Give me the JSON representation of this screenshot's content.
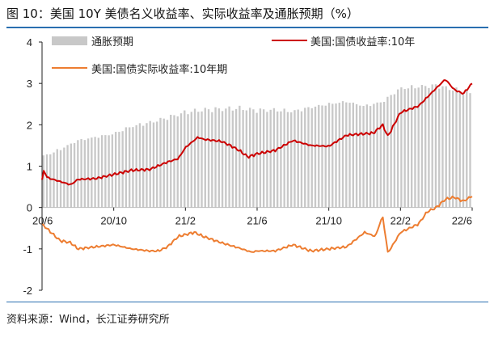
{
  "figure": {
    "title": "图 10：美国 10Y 美债名义收益率、实际收益率及通胀预期（%）",
    "source": "资料来源：Wind，长江证券研究所"
  },
  "chart_data": {
    "type": "bar+line",
    "title": "美国 10Y 美债名义收益率、实际收益率及通胀预期（%）",
    "x_ticks": [
      "20/6",
      "20/10",
      "21/2",
      "21/6",
      "21/10",
      "22/2",
      "22/6"
    ],
    "y_ticks": [
      "4",
      "3",
      "2",
      "1",
      "0",
      "-1",
      "-2"
    ],
    "ylim": [
      -2,
      4
    ],
    "x_range": [
      "2020-06",
      "2022-06"
    ],
    "series": [
      {
        "name": "通胀预期",
        "type": "bar",
        "color": "#c8c8c8",
        "anchors": [
          [
            0,
            1.22
          ],
          [
            1,
            1.4
          ],
          [
            2,
            1.62
          ],
          [
            3,
            1.7
          ],
          [
            4,
            1.78
          ],
          [
            5,
            1.96
          ],
          [
            6,
            2.05
          ],
          [
            7,
            2.17
          ],
          [
            8,
            2.3
          ],
          [
            9,
            2.36
          ],
          [
            10,
            2.38
          ],
          [
            11,
            2.4
          ],
          [
            12,
            2.35
          ],
          [
            13,
            2.36
          ],
          [
            14,
            2.32
          ],
          [
            15,
            2.42
          ],
          [
            16,
            2.5
          ],
          [
            17,
            2.56
          ],
          [
            18,
            2.45
          ],
          [
            19,
            2.55
          ],
          [
            20,
            2.88
          ],
          [
            21,
            2.92
          ],
          [
            22,
            2.95
          ],
          [
            23,
            2.85
          ],
          [
            24,
            2.75
          ]
        ]
      },
      {
        "name": "美国:国债收益率:10年",
        "type": "line",
        "color": "#cc0000",
        "anchors": [
          [
            0,
            0.66
          ],
          [
            0.1,
            0.9
          ],
          [
            0.3,
            0.72
          ],
          [
            1,
            0.63
          ],
          [
            1.6,
            0.55
          ],
          [
            2,
            0.68
          ],
          [
            3,
            0.7
          ],
          [
            4,
            0.8
          ],
          [
            5,
            0.9
          ],
          [
            6,
            0.92
          ],
          [
            7,
            1.1
          ],
          [
            7.6,
            1.18
          ],
          [
            8,
            1.45
          ],
          [
            8.7,
            1.7
          ],
          [
            9,
            1.65
          ],
          [
            10,
            1.6
          ],
          [
            10.5,
            1.5
          ],
          [
            11,
            1.38
          ],
          [
            11.5,
            1.22
          ],
          [
            12,
            1.3
          ],
          [
            13,
            1.38
          ],
          [
            13.5,
            1.5
          ],
          [
            14,
            1.62
          ],
          [
            15,
            1.5
          ],
          [
            16,
            1.48
          ],
          [
            17,
            1.75
          ],
          [
            18.5,
            1.8
          ],
          [
            19,
            2.0
          ],
          [
            19.3,
            1.72
          ],
          [
            20,
            2.3
          ],
          [
            21,
            2.45
          ],
          [
            21.8,
            2.8
          ],
          [
            22.5,
            3.1
          ],
          [
            23,
            2.85
          ],
          [
            23.5,
            2.75
          ],
          [
            24,
            3.0
          ]
        ]
      },
      {
        "name": "美国:国债实际收益率:10年期",
        "type": "line",
        "color": "#ed7d31",
        "anchors": [
          [
            0,
            -0.4
          ],
          [
            0.5,
            -0.6
          ],
          [
            1,
            -0.8
          ],
          [
            1.6,
            -0.85
          ],
          [
            2,
            -1.0
          ],
          [
            3,
            -0.95
          ],
          [
            4,
            -0.9
          ],
          [
            5,
            -1.0
          ],
          [
            6,
            -1.05
          ],
          [
            6.5,
            -1.05
          ],
          [
            7,
            -0.95
          ],
          [
            7.6,
            -0.7
          ],
          [
            8.5,
            -0.6
          ],
          [
            9,
            -0.7
          ],
          [
            10,
            -0.85
          ],
          [
            11,
            -0.98
          ],
          [
            11.7,
            -1.08
          ],
          [
            12,
            -1.05
          ],
          [
            13,
            -1.05
          ],
          [
            14,
            -0.9
          ],
          [
            15,
            -1.05
          ],
          [
            16,
            -1.0
          ],
          [
            17,
            -0.95
          ],
          [
            18,
            -0.6
          ],
          [
            18.6,
            -0.7
          ],
          [
            19,
            -0.2
          ],
          [
            19.3,
            -1.1
          ],
          [
            20,
            -0.6
          ],
          [
            21,
            -0.4
          ],
          [
            21.5,
            -0.1
          ],
          [
            22,
            0.0
          ],
          [
            22.5,
            0.2
          ],
          [
            23,
            0.25
          ],
          [
            23.5,
            0.15
          ],
          [
            24,
            0.28
          ]
        ]
      }
    ]
  }
}
